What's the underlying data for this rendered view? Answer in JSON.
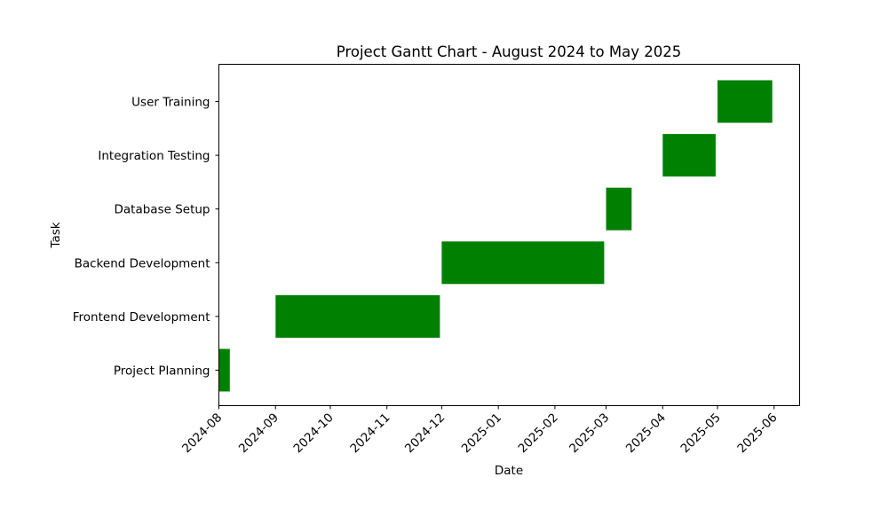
{
  "chart_data": {
    "type": "gantt",
    "title": "Project Gantt Chart - August 2024 to May 2025",
    "xlabel": "Date",
    "ylabel": "Task",
    "bar_color": "#008000",
    "grid": false,
    "legend": "none",
    "x_range": [
      "2024-08-01",
      "2025-06-15"
    ],
    "x_ticks": [
      "2024-08",
      "2024-09",
      "2024-10",
      "2024-11",
      "2024-12",
      "2025-01",
      "2025-02",
      "2025-03",
      "2025-04",
      "2025-05",
      "2025-06"
    ],
    "tasks": [
      {
        "name": "Project Planning",
        "start": "2024-08-01",
        "end": "2024-08-07"
      },
      {
        "name": "Frontend Development",
        "start": "2024-09-01",
        "end": "2024-11-30"
      },
      {
        "name": "Backend Development",
        "start": "2024-12-01",
        "end": "2025-02-28"
      },
      {
        "name": "Database Setup",
        "start": "2025-03-01",
        "end": "2025-03-15"
      },
      {
        "name": "Integration Testing",
        "start": "2025-04-01",
        "end": "2025-04-30"
      },
      {
        "name": "User Training",
        "start": "2025-05-01",
        "end": "2025-05-31"
      }
    ]
  }
}
